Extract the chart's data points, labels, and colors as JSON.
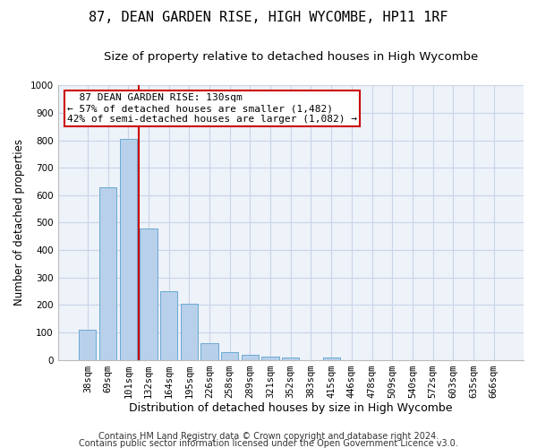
{
  "title": "87, DEAN GARDEN RISE, HIGH WYCOMBE, HP11 1RF",
  "subtitle": "Size of property relative to detached houses in High Wycombe",
  "xlabel": "Distribution of detached houses by size in High Wycombe",
  "ylabel": "Number of detached properties",
  "bar_labels": [
    "38sqm",
    "69sqm",
    "101sqm",
    "132sqm",
    "164sqm",
    "195sqm",
    "226sqm",
    "258sqm",
    "289sqm",
    "321sqm",
    "352sqm",
    "383sqm",
    "415sqm",
    "446sqm",
    "478sqm",
    "509sqm",
    "540sqm",
    "572sqm",
    "603sqm",
    "635sqm",
    "666sqm"
  ],
  "bar_values": [
    110,
    630,
    805,
    480,
    250,
    205,
    60,
    27,
    18,
    13,
    10,
    0,
    10,
    0,
    0,
    0,
    0,
    0,
    0,
    0,
    0
  ],
  "bar_color": "#b8d0ea",
  "bar_edge_color": "#6aaad4",
  "vline_color": "#cc0000",
  "annotation_text": "  87 DEAN GARDEN RISE: 130sqm  \n← 57% of detached houses are smaller (1,482)\n42% of semi-detached houses are larger (1,082) →",
  "annotation_box_facecolor": "#ffffff",
  "annotation_box_edgecolor": "#cc0000",
  "ylim": [
    0,
    1000
  ],
  "yticks": [
    0,
    100,
    200,
    300,
    400,
    500,
    600,
    700,
    800,
    900,
    1000
  ],
  "grid_color": "#c8d4e8",
  "footer_line1": "Contains HM Land Registry data © Crown copyright and database right 2024.",
  "footer_line2": "Contains public sector information licensed under the Open Government Licence v3.0.",
  "title_fontsize": 11,
  "subtitle_fontsize": 9.5,
  "xlabel_fontsize": 9,
  "ylabel_fontsize": 8.5,
  "tick_fontsize": 7.5,
  "footer_fontsize": 7,
  "annotation_fontsize": 8,
  "fig_bg_color": "#ffffff",
  "plot_bg_color": "#eef2f9"
}
